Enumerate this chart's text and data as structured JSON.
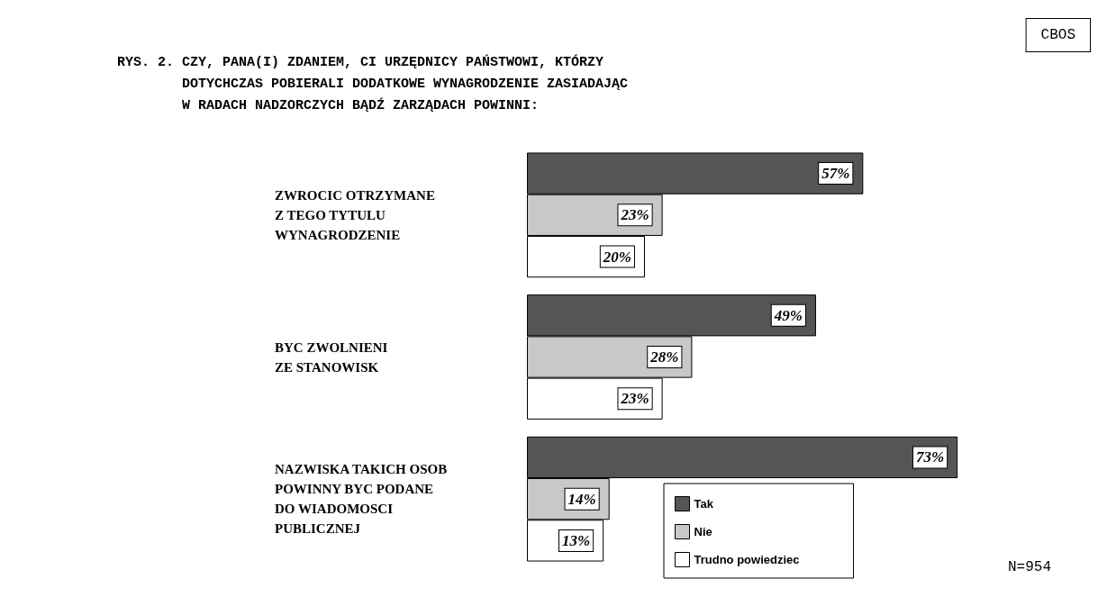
{
  "chart_data": {
    "type": "bar",
    "orientation": "horizontal",
    "title": "RYS. 2. CZY, PANA(I) ZDANIEM, CI URZĘDNICY PAŃSTWOWI, KTÓRZY\n        DOTYCHCZAS POBIERALI DODATKOWE WYNAGRODZENIE ZASIADAJĄC\n        W RADACH NADZORCZYCH BĄDŹ ZARZĄDACH POWINNI:",
    "categories": [
      "ZWROCIC OTRZYMANE\nZ TEGO TYTULU\nWYNAGRODZENIE",
      "BYC ZWOLNIENI\nZE STANOWISK",
      "NAZWISKA TAKICH OSOB\nPOWINNY BYC PODANE\nDO WIADOMOSCI\nPUBLICZNEJ"
    ],
    "series": [
      {
        "name": "Tak",
        "color": "#555555",
        "values": [
          57,
          49,
          73
        ],
        "value_labels": [
          "57%",
          "49%",
          "73%"
        ]
      },
      {
        "name": "Nie",
        "color": "#c8c8c8",
        "values": [
          23,
          28,
          14
        ],
        "value_labels": [
          "23%",
          "28%",
          "14%"
        ]
      },
      {
        "name": "Trudno powiedziec",
        "color": "#ffffff",
        "values": [
          20,
          23,
          13
        ],
        "value_labels": [
          "20%",
          "23%",
          "13%"
        ]
      }
    ],
    "legend": "bottom right",
    "annotations": [
      "CBOS",
      "N=954"
    ]
  }
}
